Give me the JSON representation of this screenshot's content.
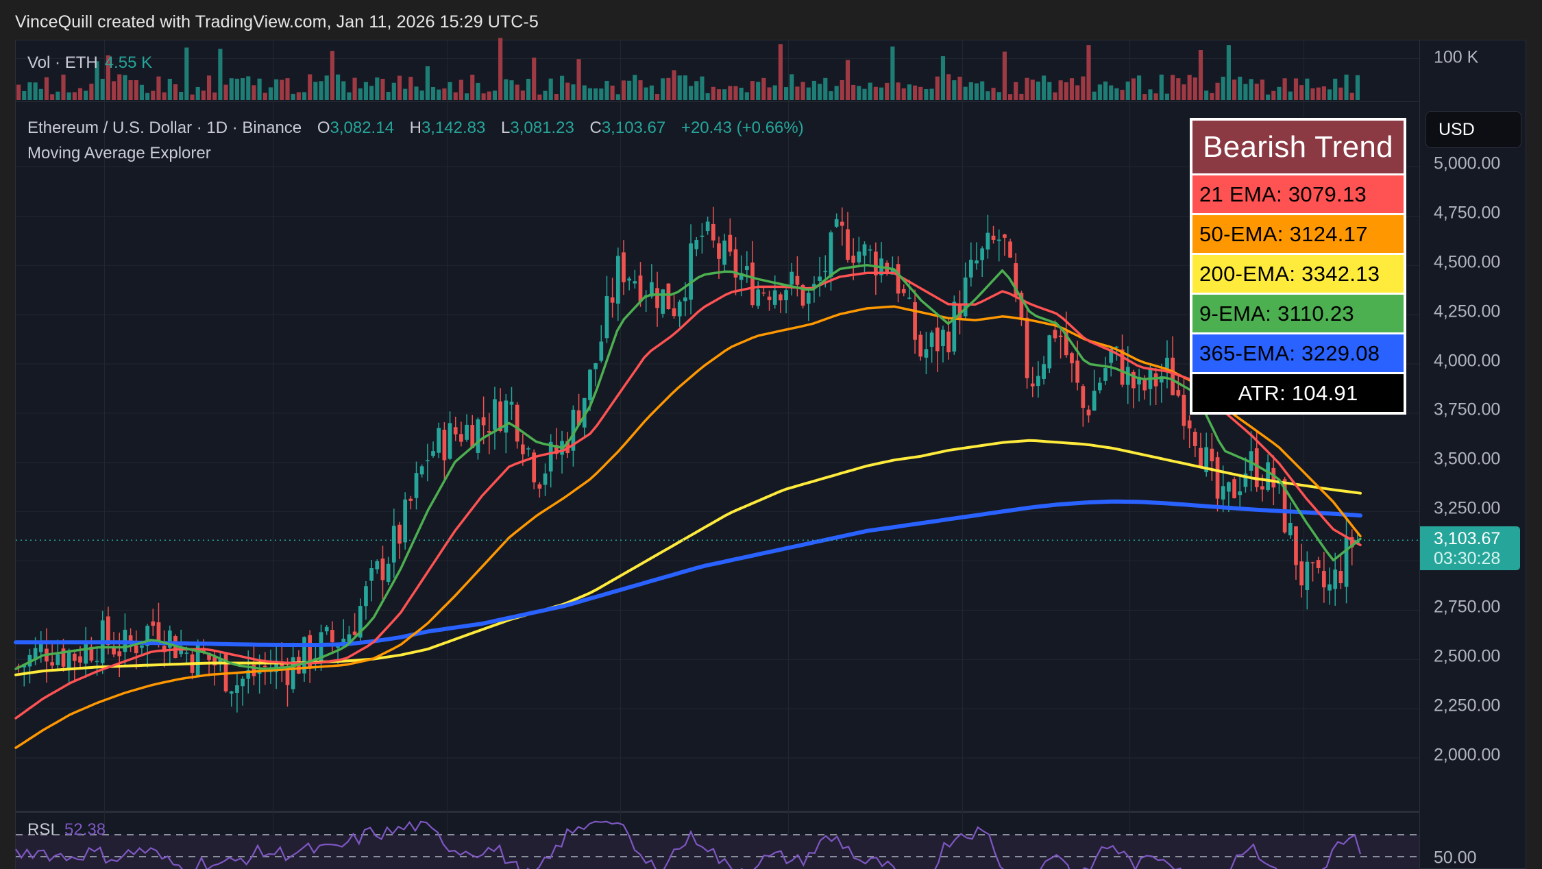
{
  "header": {
    "watermark": "VinceQuill created with TradingView.com, Jan 11, 2026 15:29 UTC-5"
  },
  "volume_pane": {
    "label": "Vol · ETH",
    "value": "4.55 K",
    "axis_label": "100 K"
  },
  "symbol_legend": {
    "title": "Ethereum / U.S. Dollar · 1D · Binance",
    "open_key": "O",
    "open": "3,082.14",
    "high_key": "H",
    "high": "3,142.83",
    "low_key": "L",
    "low": "3,081.23",
    "close_key": "C",
    "close": "3,103.67",
    "change": "+20.43 (+0.66%)",
    "indicator": "Moving Average Explorer"
  },
  "price_axis": {
    "currency": "USD",
    "ticks": [
      "5,000.00",
      "4,750.00",
      "4,500.00",
      "4,250.00",
      "4,000.00",
      "3,750.00",
      "3,500.00",
      "3,250.00",
      "2,750.00",
      "2,500.00",
      "2,250.00",
      "2,000.00"
    ],
    "last_price": "3,103.67",
    "countdown": "03:30:28"
  },
  "trend_table": {
    "title": "Bearish Trend",
    "rows": [
      {
        "label": "21 EMA: 3079.13",
        "color": "#ff5252"
      },
      {
        "label": "50-EMA: 3124.17",
        "color": "#ff9800"
      },
      {
        "label": "200-EMA: 3342.13",
        "color": "#ffeb3b"
      },
      {
        "label": "9-EMA: 3110.23",
        "color": "#4caf50"
      },
      {
        "label": "365-EMA: 3229.08",
        "color": "#2962ff"
      }
    ],
    "atr": "ATR: 104.91",
    "title_bg": "#8b3a44",
    "atr_bg": "#000000"
  },
  "rsi_pane": {
    "label": "RSI",
    "value": "52.38",
    "axis_label": "50.00"
  },
  "colors": {
    "up": "#26a69a",
    "down": "#ef5350",
    "vol_up": "#1e7d74",
    "vol_down": "#9e3a44",
    "ema9": "#4caf50",
    "ema21": "#ff5252",
    "ema50": "#ff9800",
    "ema200": "#ffeb3b",
    "ema365": "#2962ff",
    "rsi": "#7e57c2",
    "last_price_line": "#26a69a"
  },
  "chart_data": {
    "type": "line",
    "title": "Ethereum / U.S. Dollar · 1D · Binance",
    "xlabel": "",
    "ylabel": "USD",
    "ylim": [
      1850,
      5100
    ],
    "grid": true,
    "legend_position": "top-right table",
    "annotations": [
      "Bearish Trend",
      "ATR: 104.91",
      "RSI 52.38",
      "Last price 3,103.67"
    ],
    "x": [
      0,
      10,
      20,
      30,
      40,
      50,
      60,
      70,
      80,
      90,
      100,
      110,
      120,
      130,
      140,
      150,
      160,
      170,
      180,
      190,
      200,
      210,
      220,
      230,
      240,
      250,
      260,
      270,
      280,
      290,
      300,
      310,
      320,
      330,
      340,
      350,
      360,
      370,
      380,
      390,
      400,
      410,
      420,
      430,
      440,
      450,
      460,
      470,
      480,
      490
    ],
    "close_path": [
      2460,
      2560,
      2520,
      2600,
      2550,
      2690,
      2540,
      2500,
      2380,
      2450,
      2470,
      2560,
      2620,
      2900,
      3150,
      3550,
      3650,
      3700,
      3800,
      3440,
      3600,
      3950,
      4500,
      4400,
      4300,
      4650,
      4500,
      4380,
      4420,
      4320,
      4650,
      4550,
      4500,
      4050,
      4150,
      4500,
      4650,
      3900,
      4200,
      3750,
      4050,
      3850,
      3960,
      3700,
      3250,
      3500,
      3380,
      2900,
      2850,
      3150
    ],
    "series": [
      {
        "name": "9-EMA",
        "color": "#4caf50",
        "values": [
          2450,
          2520,
          2540,
          2560,
          2560,
          2600,
          2560,
          2530,
          2470,
          2450,
          2460,
          2500,
          2560,
          2700,
          2950,
          3250,
          3500,
          3620,
          3700,
          3600,
          3570,
          3800,
          4200,
          4350,
          4350,
          4450,
          4470,
          4430,
          4400,
          4370,
          4480,
          4500,
          4480,
          4320,
          4200,
          4330,
          4480,
          4250,
          4200,
          4000,
          3980,
          3920,
          3930,
          3850,
          3560,
          3500,
          3420,
          3200,
          3000,
          3110
        ]
      },
      {
        "name": "21 EMA",
        "color": "#ff5252",
        "values": [
          2200,
          2300,
          2380,
          2440,
          2490,
          2540,
          2550,
          2550,
          2520,
          2490,
          2480,
          2480,
          2500,
          2580,
          2730,
          2940,
          3150,
          3330,
          3480,
          3530,
          3560,
          3650,
          3850,
          4050,
          4150,
          4280,
          4360,
          4390,
          4390,
          4380,
          4440,
          4460,
          4460,
          4380,
          4300,
          4300,
          4370,
          4300,
          4250,
          4120,
          4060,
          3980,
          3960,
          3910,
          3760,
          3640,
          3500,
          3320,
          3160,
          3079
        ]
      },
      {
        "name": "50-EMA",
        "color": "#ff9800",
        "values": [
          2050,
          2140,
          2220,
          2280,
          2330,
          2370,
          2400,
          2420,
          2430,
          2440,
          2450,
          2460,
          2470,
          2500,
          2570,
          2680,
          2820,
          2970,
          3120,
          3230,
          3320,
          3420,
          3560,
          3720,
          3860,
          3980,
          4080,
          4140,
          4170,
          4200,
          4250,
          4280,
          4290,
          4260,
          4230,
          4220,
          4240,
          4220,
          4190,
          4120,
          4080,
          4010,
          3970,
          3900,
          3780,
          3680,
          3580,
          3440,
          3300,
          3124
        ]
      },
      {
        "name": "200-EMA",
        "color": "#ffeb3b",
        "values": [
          2420,
          2440,
          2450,
          2460,
          2465,
          2470,
          2475,
          2480,
          2480,
          2480,
          2480,
          2485,
          2490,
          2500,
          2520,
          2550,
          2600,
          2650,
          2700,
          2740,
          2780,
          2840,
          2920,
          3000,
          3080,
          3160,
          3240,
          3300,
          3360,
          3400,
          3440,
          3480,
          3510,
          3530,
          3560,
          3580,
          3600,
          3610,
          3600,
          3590,
          3570,
          3540,
          3510,
          3480,
          3450,
          3420,
          3400,
          3380,
          3360,
          3342
        ]
      },
      {
        "name": "365-EMA",
        "color": "#2962ff",
        "values": [
          2585,
          2585,
          2585,
          2585,
          2585,
          2582,
          2580,
          2578,
          2575,
          2573,
          2572,
          2572,
          2575,
          2590,
          2610,
          2640,
          2660,
          2680,
          2710,
          2740,
          2770,
          2810,
          2850,
          2890,
          2930,
          2970,
          3000,
          3030,
          3060,
          3090,
          3120,
          3150,
          3170,
          3190,
          3210,
          3230,
          3250,
          3270,
          3285,
          3295,
          3300,
          3298,
          3290,
          3280,
          3270,
          3260,
          3252,
          3245,
          3238,
          3229
        ]
      }
    ]
  }
}
